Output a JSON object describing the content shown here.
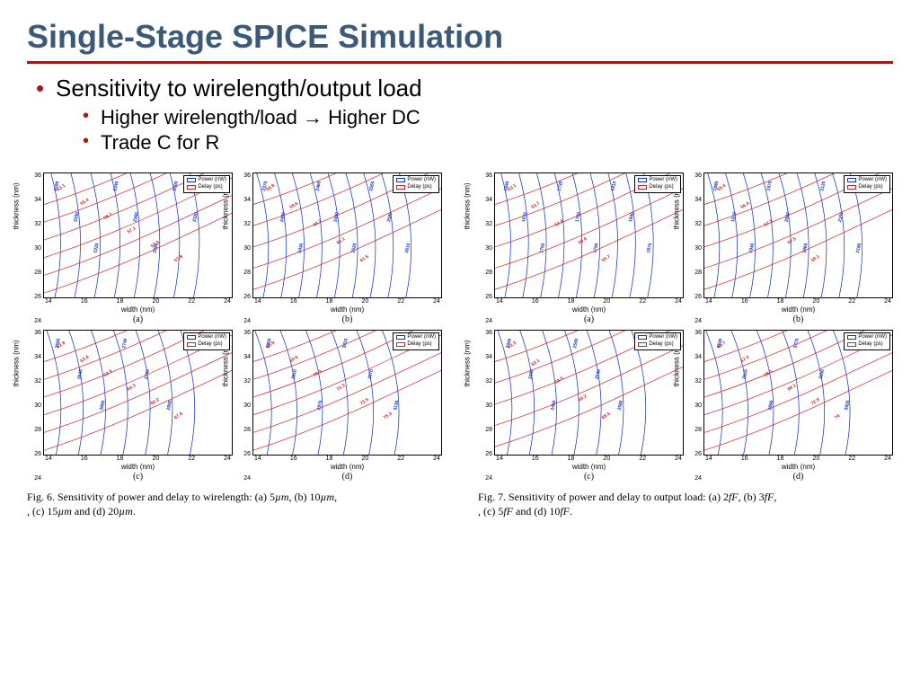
{
  "title": "Single-Stage SPICE Simulation",
  "bullets": {
    "main": "Sensitivity to wirelength/output load",
    "sub1": "Higher wirelength/load → Higher DC",
    "sub2": "Trade C for R"
  },
  "axes": {
    "xlabel": "width (nm)",
    "ylabel": "thickness (nm)",
    "xticks": [
      "14",
      "16",
      "18",
      "20",
      "22",
      "24"
    ],
    "yticks": [
      "36",
      "34",
      "32",
      "30",
      "28",
      "26",
      "24"
    ],
    "xlim": [
      13,
      25
    ],
    "ylim": [
      23,
      37
    ]
  },
  "legend": {
    "power": "Power (nW)",
    "delay": "Delay (ps)"
  },
  "colors": {
    "title": "#3b5a7a",
    "rule": "#a01818",
    "bullet_marker": "#a01818",
    "power_line": "#1030d0",
    "delay_line": "#d02020",
    "background": "#ffffff",
    "axis": "#000000"
  },
  "typography": {
    "title_fontsize": 36,
    "bullet_fontsize": 26,
    "subbullet_fontsize": 22,
    "axis_label_fontsize": 8,
    "tick_fontsize": 7,
    "legend_fontsize": 6,
    "caption_fontsize": 12,
    "caption_font": "Times New Roman"
  },
  "figures": [
    {
      "id": "fig6",
      "caption_prefix": "Fig. 6.   Sensitivity of power and delay to wirelength: (a) 5",
      "caption_units": "µm",
      "caption_middle": ", (b) 10",
      "caption_c": ", (c) 15",
      "caption_d": " and (d) 20",
      "caption_suffix": ".",
      "subplots": [
        {
          "letter": "(a)",
          "power_labels": [
            "2180",
            "2200",
            "2220",
            "2240",
            "2260",
            "2280",
            "2300",
            "2320"
          ],
          "delay_labels": [
            "53.1",
            "55.4",
            "56.1",
            "57.1",
            "57.3",
            "57.8"
          ]
        },
        {
          "letter": "(b)",
          "power_labels": [
            "2370",
            "2400",
            "2430",
            "2460",
            "2490",
            "2520",
            "2550",
            "2580",
            "2610"
          ],
          "delay_labels": [
            "58.8",
            "59.6",
            "60.2",
            "61.1",
            "61.5"
          ]
        },
        {
          "letter": "(c)",
          "power_labels": [
            "2590",
            "2640",
            "2690",
            "2740",
            "2790",
            "2840",
            "2890"
          ],
          "delay_labels": [
            "62.8",
            "63.4",
            "63.9",
            "64.3",
            "65.2",
            "67.9"
          ]
        },
        {
          "letter": "(d)",
          "power_labels": [
            "2850",
            "2910",
            "2970",
            "3010",
            "3070",
            "3130"
          ],
          "delay_labels": [
            "68.9",
            "69.6",
            "70.3",
            "71.3",
            "73.5",
            "75.3"
          ]
        }
      ]
    },
    {
      "id": "fig7",
      "caption_prefix": "Fig. 7.   Sensitivity of power and delay to output load: (a) 2",
      "caption_units": "fF",
      "caption_middle": ", (b) 3",
      "caption_c": ", (c) 5",
      "caption_d": " and (d) 10",
      "caption_suffix": ".",
      "subplots": [
        {
          "letter": "(a)",
          "power_labels": [
            "1640",
            "1670",
            "1700",
            "1730",
            "1760",
            "1790",
            "1810",
            "1840",
            "1870"
          ],
          "delay_labels": [
            "53.1",
            "53.7",
            "54.4",
            "55.4",
            "55.7"
          ]
        },
        {
          "letter": "(b)",
          "power_labels": [
            "1880",
            "1910",
            "1940",
            "1970",
            "2000",
            "2060",
            "2120",
            "2150",
            "2180"
          ],
          "delay_labels": [
            "55.4",
            "56.4",
            "57.3",
            "57.5",
            "58.1"
          ]
        },
        {
          "letter": "(c)",
          "power_labels": [
            "2340",
            "2400",
            "2460",
            "2500",
            "2540",
            "2580",
            "2620"
          ],
          "delay_labels": [
            "61.3",
            "62.1",
            "63.5",
            "65.2",
            "68.5"
          ]
        },
        {
          "letter": "(d)",
          "power_labels": [
            "3530",
            "3610",
            "3690",
            "3770",
            "3850",
            "3920"
          ],
          "delay_labels": [
            "66.7",
            "67.3",
            "68.1",
            "69.1",
            "72.9",
            "74"
          ]
        }
      ]
    }
  ]
}
